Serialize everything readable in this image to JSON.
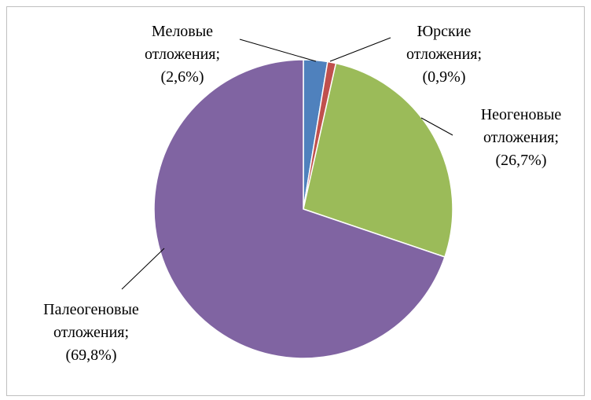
{
  "chart_data": {
    "type": "pie",
    "categories": [
      "Меловые отложения;",
      "Юрские отложения;",
      "Неогеновые отложения;",
      "Палеогеновые отложения;"
    ],
    "values": [
      2.6,
      0.9,
      26.7,
      69.8
    ],
    "value_labels": [
      "(2,6%)",
      "(0,9%)",
      "(26,7%)",
      "(69,8%)"
    ],
    "colors": [
      "#4f81bd",
      "#c0504d",
      "#9bbb59",
      "#8064a2"
    ]
  }
}
